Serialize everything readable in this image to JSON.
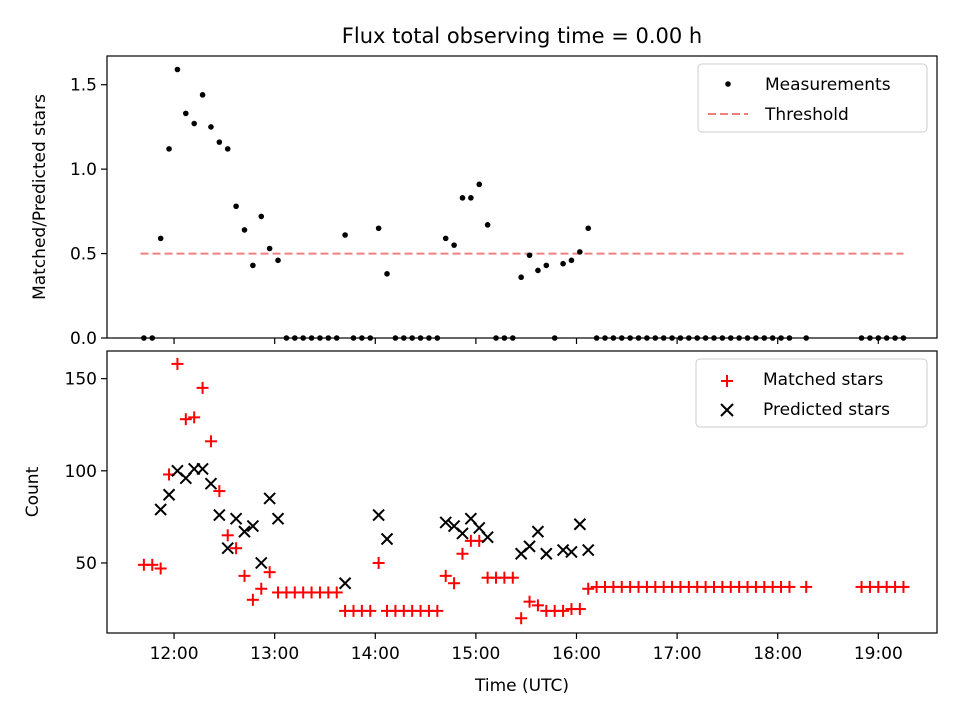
{
  "chart_data": [
    {
      "type": "scatter",
      "title": "Flux total observing time = 0.00 h",
      "xlabel": "",
      "ylabel": "Matched/Predicted stars",
      "ylim": [
        0,
        1.67
      ],
      "yticks": [
        "0.0",
        "0.5",
        "1.0",
        "1.5"
      ],
      "legend": "top-right",
      "threshold": 0.5,
      "threshold_range": [
        "11:40",
        "19:15"
      ],
      "series": [
        {
          "name": "Measurements",
          "color": "#000000",
          "marker": "dot",
          "points": [
            [
              "11:42",
              0
            ],
            [
              "11:47",
              0
            ],
            [
              "11:52",
              0.59
            ],
            [
              "11:57",
              1.12
            ],
            [
              "12:02",
              1.59
            ],
            [
              "12:07",
              1.33
            ],
            [
              "12:12",
              1.27
            ],
            [
              "12:17",
              1.44
            ],
            [
              "12:22",
              1.25
            ],
            [
              "12:27",
              1.16
            ],
            [
              "12:32",
              1.12
            ],
            [
              "12:37",
              0.78
            ],
            [
              "12:42",
              0.64
            ],
            [
              "12:47",
              0.43
            ],
            [
              "12:52",
              0.72
            ],
            [
              "12:57",
              0.53
            ],
            [
              "13:02",
              0.46
            ],
            [
              "13:07",
              0
            ],
            [
              "13:12",
              0
            ],
            [
              "13:17",
              0
            ],
            [
              "13:22",
              0
            ],
            [
              "13:27",
              0
            ],
            [
              "13:32",
              0
            ],
            [
              "13:37",
              0
            ],
            [
              "13:42",
              0.61
            ],
            [
              "13:47",
              0
            ],
            [
              "13:52",
              0
            ],
            [
              "13:57",
              0
            ],
            [
              "14:02",
              0.65
            ],
            [
              "14:07",
              0.38
            ],
            [
              "14:12",
              0
            ],
            [
              "14:17",
              0
            ],
            [
              "14:22",
              0
            ],
            [
              "14:27",
              0
            ],
            [
              "14:32",
              0
            ],
            [
              "14:37",
              0
            ],
            [
              "14:42",
              0.59
            ],
            [
              "14:47",
              0.55
            ],
            [
              "14:52",
              0.83
            ],
            [
              "14:57",
              0.83
            ],
            [
              "15:02",
              0.91
            ],
            [
              "15:07",
              0.67
            ],
            [
              "15:12",
              0
            ],
            [
              "15:17",
              0
            ],
            [
              "15:22",
              0
            ],
            [
              "15:27",
              0.36
            ],
            [
              "15:32",
              0.49
            ],
            [
              "15:37",
              0.4
            ],
            [
              "15:42",
              0.43
            ],
            [
              "15:47",
              0
            ],
            [
              "15:52",
              0.44
            ],
            [
              "15:57",
              0.46
            ],
            [
              "16:02",
              0.51
            ],
            [
              "16:07",
              0.65
            ],
            [
              "16:12",
              0
            ],
            [
              "16:17",
              0
            ],
            [
              "16:22",
              0
            ],
            [
              "16:27",
              0
            ],
            [
              "16:32",
              0
            ],
            [
              "16:37",
              0
            ],
            [
              "16:42",
              0
            ],
            [
              "16:47",
              0
            ],
            [
              "16:52",
              0
            ],
            [
              "16:57",
              0
            ],
            [
              "17:02",
              0
            ],
            [
              "17:07",
              0
            ],
            [
              "17:12",
              0
            ],
            [
              "17:17",
              0
            ],
            [
              "17:22",
              0
            ],
            [
              "17:27",
              0
            ],
            [
              "17:32",
              0
            ],
            [
              "17:37",
              0
            ],
            [
              "17:42",
              0
            ],
            [
              "17:47",
              0
            ],
            [
              "17:52",
              0
            ],
            [
              "17:57",
              0
            ],
            [
              "18:02",
              0
            ],
            [
              "18:07",
              0
            ],
            [
              "18:17",
              0
            ],
            [
              "18:50",
              0
            ],
            [
              "18:55",
              0
            ],
            [
              "19:00",
              0
            ],
            [
              "19:05",
              0
            ],
            [
              "19:10",
              0
            ],
            [
              "19:15",
              0
            ]
          ]
        },
        {
          "name": "Threshold",
          "color": "#f08080",
          "marker": "dashed-line"
        }
      ]
    },
    {
      "type": "scatter",
      "title": "",
      "xlabel": "Time (UTC)",
      "ylabel": "Count",
      "ylim": [
        12,
        165
      ],
      "yticks": [
        "50",
        "100",
        "150"
      ],
      "xticks": [
        "12:00",
        "13:00",
        "14:00",
        "15:00",
        "16:00",
        "17:00",
        "18:00",
        "19:00"
      ],
      "xlim": [
        "11:20",
        "19:35"
      ],
      "legend": "top-right",
      "series": [
        {
          "name": "Matched stars",
          "color": "#ff0000",
          "marker": "plus",
          "points": [
            [
              "11:42",
              49
            ],
            [
              "11:47",
              49
            ],
            [
              "11:52",
              47
            ],
            [
              "11:57",
              98
            ],
            [
              "12:02",
              158
            ],
            [
              "12:07",
              128
            ],
            [
              "12:12",
              129
            ],
            [
              "12:17",
              145
            ],
            [
              "12:22",
              116
            ],
            [
              "12:27",
              89
            ],
            [
              "12:32",
              65
            ],
            [
              "12:37",
              58
            ],
            [
              "12:42",
              43
            ],
            [
              "12:47",
              30
            ],
            [
              "12:52",
              36
            ],
            [
              "12:57",
              45
            ],
            [
              "13:02",
              34
            ],
            [
              "13:07",
              34
            ],
            [
              "13:12",
              34
            ],
            [
              "13:17",
              34
            ],
            [
              "13:22",
              34
            ],
            [
              "13:27",
              34
            ],
            [
              "13:32",
              34
            ],
            [
              "13:37",
              34
            ],
            [
              "13:42",
              24
            ],
            [
              "13:47",
              24
            ],
            [
              "13:52",
              24
            ],
            [
              "13:57",
              24
            ],
            [
              "14:02",
              50
            ],
            [
              "14:07",
              24
            ],
            [
              "14:12",
              24
            ],
            [
              "14:17",
              24
            ],
            [
              "14:22",
              24
            ],
            [
              "14:27",
              24
            ],
            [
              "14:32",
              24
            ],
            [
              "14:37",
              24
            ],
            [
              "14:42",
              43
            ],
            [
              "14:47",
              39
            ],
            [
              "14:52",
              55
            ],
            [
              "14:57",
              62
            ],
            [
              "15:02",
              62
            ],
            [
              "15:07",
              42
            ],
            [
              "15:12",
              42
            ],
            [
              "15:17",
              42
            ],
            [
              "15:22",
              42
            ],
            [
              "15:27",
              20
            ],
            [
              "15:32",
              29
            ],
            [
              "15:37",
              27
            ],
            [
              "15:42",
              24
            ],
            [
              "15:47",
              24
            ],
            [
              "15:52",
              24
            ],
            [
              "15:57",
              25
            ],
            [
              "16:02",
              25
            ],
            [
              "16:07",
              36
            ],
            [
              "16:12",
              37
            ],
            [
              "16:17",
              37
            ],
            [
              "16:22",
              37
            ],
            [
              "16:27",
              37
            ],
            [
              "16:32",
              37
            ],
            [
              "16:37",
              37
            ],
            [
              "16:42",
              37
            ],
            [
              "16:47",
              37
            ],
            [
              "16:52",
              37
            ],
            [
              "16:57",
              37
            ],
            [
              "17:02",
              37
            ],
            [
              "17:07",
              37
            ],
            [
              "17:12",
              37
            ],
            [
              "17:17",
              37
            ],
            [
              "17:22",
              37
            ],
            [
              "17:27",
              37
            ],
            [
              "17:32",
              37
            ],
            [
              "17:37",
              37
            ],
            [
              "17:42",
              37
            ],
            [
              "17:47",
              37
            ],
            [
              "17:52",
              37
            ],
            [
              "17:57",
              37
            ],
            [
              "18:02",
              37
            ],
            [
              "18:07",
              37
            ],
            [
              "18:17",
              37
            ],
            [
              "18:50",
              37
            ],
            [
              "18:55",
              37
            ],
            [
              "19:00",
              37
            ],
            [
              "19:05",
              37
            ],
            [
              "19:10",
              37
            ],
            [
              "19:15",
              37
            ]
          ]
        },
        {
          "name": "Predicted stars",
          "color": "#000000",
          "marker": "x",
          "points": [
            [
              "11:52",
              79
            ],
            [
              "11:57",
              87
            ],
            [
              "12:02",
              100
            ],
            [
              "12:07",
              96
            ],
            [
              "12:12",
              101
            ],
            [
              "12:17",
              101
            ],
            [
              "12:22",
              93
            ],
            [
              "12:27",
              76
            ],
            [
              "12:32",
              58
            ],
            [
              "12:37",
              74
            ],
            [
              "12:42",
              67
            ],
            [
              "12:47",
              70
            ],
            [
              "12:52",
              50
            ],
            [
              "12:57",
              85
            ],
            [
              "13:02",
              74
            ],
            [
              "13:42",
              39
            ],
            [
              "14:02",
              76
            ],
            [
              "14:07",
              63
            ],
            [
              "14:42",
              72
            ],
            [
              "14:47",
              70
            ],
            [
              "14:52",
              66
            ],
            [
              "14:57",
              74
            ],
            [
              "15:02",
              69
            ],
            [
              "15:07",
              64
            ],
            [
              "15:27",
              55
            ],
            [
              "15:32",
              59
            ],
            [
              "15:37",
              67
            ],
            [
              "15:42",
              55
            ],
            [
              "15:52",
              57
            ],
            [
              "15:57",
              56
            ],
            [
              "16:02",
              71
            ],
            [
              "16:07",
              57
            ]
          ]
        }
      ]
    }
  ]
}
